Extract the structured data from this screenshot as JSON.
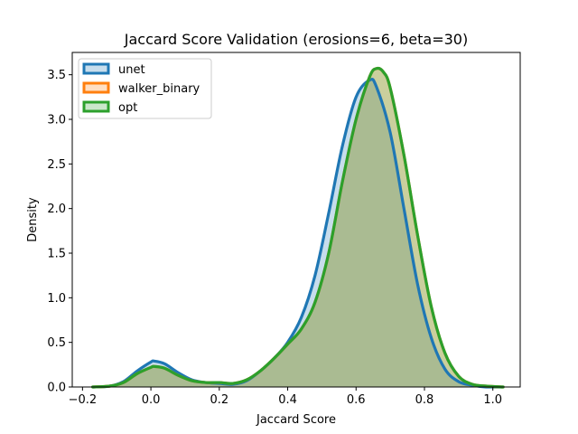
{
  "chart_data": {
    "type": "area",
    "title": "Jaccard Score Validation (erosions=6, beta=30)",
    "xlabel": "Jaccard Score",
    "ylabel": "Density",
    "xlim": [
      -0.23,
      1.08
    ],
    "ylim": [
      0.0,
      3.75
    ],
    "xticks": [
      -0.2,
      0.0,
      0.2,
      0.4,
      0.6,
      0.8,
      1.0
    ],
    "xtick_labels": [
      "−0.2",
      "0.0",
      "0.2",
      "0.4",
      "0.6",
      "0.8",
      "1.0"
    ],
    "yticks": [
      0.0,
      0.5,
      1.0,
      1.5,
      2.0,
      2.5,
      3.0,
      3.5
    ],
    "ytick_labels": [
      "0.0",
      "0.5",
      "1.0",
      "1.5",
      "2.0",
      "2.5",
      "3.0",
      "3.5"
    ],
    "grid": false,
    "legend": "top-left",
    "series": [
      {
        "name": "unet",
        "color": "#1f77b4",
        "x": [
          -0.17,
          -0.12,
          -0.08,
          -0.04,
          0.0,
          0.01,
          0.04,
          0.08,
          0.12,
          0.16,
          0.2,
          0.24,
          0.28,
          0.32,
          0.36,
          0.4,
          0.44,
          0.48,
          0.52,
          0.56,
          0.6,
          0.64,
          0.66,
          0.7,
          0.74,
          0.78,
          0.82,
          0.86,
          0.9,
          0.94,
          0.98,
          1.03
        ],
        "y": [
          0.0,
          0.01,
          0.06,
          0.18,
          0.28,
          0.29,
          0.26,
          0.16,
          0.08,
          0.05,
          0.04,
          0.03,
          0.07,
          0.18,
          0.32,
          0.5,
          0.78,
          1.25,
          1.95,
          2.7,
          3.25,
          3.44,
          3.36,
          2.85,
          2.0,
          1.15,
          0.55,
          0.2,
          0.06,
          0.02,
          0.0,
          0.0
        ]
      },
      {
        "name": "walker_binary",
        "color": "#ff7f0e",
        "x": [
          -0.17,
          -0.12,
          -0.08,
          -0.04,
          0.0,
          0.01,
          0.04,
          0.08,
          0.12,
          0.16,
          0.2,
          0.24,
          0.28,
          0.32,
          0.36,
          0.4,
          0.44,
          0.48,
          0.52,
          0.56,
          0.6,
          0.64,
          0.66,
          0.68,
          0.7,
          0.74,
          0.78,
          0.82,
          0.86,
          0.9,
          0.94,
          0.98,
          1.03
        ],
        "y": [
          0.0,
          0.01,
          0.05,
          0.15,
          0.22,
          0.23,
          0.21,
          0.13,
          0.07,
          0.05,
          0.05,
          0.04,
          0.08,
          0.18,
          0.32,
          0.48,
          0.65,
          0.95,
          1.5,
          2.3,
          3.0,
          3.48,
          3.57,
          3.53,
          3.35,
          2.6,
          1.7,
          0.9,
          0.38,
          0.12,
          0.03,
          0.01,
          0.0
        ]
      },
      {
        "name": "opt",
        "color": "#2ca02c",
        "x": [
          -0.17,
          -0.12,
          -0.08,
          -0.04,
          0.0,
          0.01,
          0.04,
          0.08,
          0.12,
          0.16,
          0.2,
          0.24,
          0.28,
          0.32,
          0.36,
          0.4,
          0.44,
          0.48,
          0.52,
          0.56,
          0.6,
          0.64,
          0.66,
          0.68,
          0.7,
          0.74,
          0.78,
          0.82,
          0.86,
          0.9,
          0.94,
          0.98,
          1.03
        ],
        "y": [
          0.0,
          0.01,
          0.05,
          0.15,
          0.22,
          0.23,
          0.21,
          0.13,
          0.07,
          0.05,
          0.05,
          0.04,
          0.08,
          0.18,
          0.32,
          0.48,
          0.65,
          0.95,
          1.5,
          2.3,
          3.0,
          3.48,
          3.57,
          3.53,
          3.35,
          2.6,
          1.7,
          0.9,
          0.38,
          0.12,
          0.03,
          0.01,
          0.0
        ]
      }
    ]
  }
}
